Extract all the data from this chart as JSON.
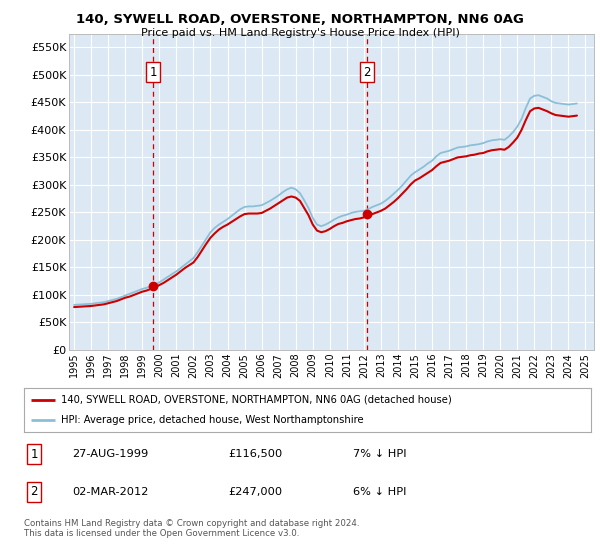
{
  "title": "140, SYWELL ROAD, OVERSTONE, NORTHAMPTON, NN6 0AG",
  "subtitle": "Price paid vs. HM Land Registry's House Price Index (HPI)",
  "background_color": "#ffffff",
  "plot_background": "#dce9f5",
  "grid_color": "#ffffff",
  "ylim": [
    0,
    575000
  ],
  "yticks": [
    0,
    50000,
    100000,
    150000,
    200000,
    250000,
    300000,
    350000,
    400000,
    450000,
    500000,
    550000
  ],
  "ytick_labels": [
    "£0",
    "£50K",
    "£100K",
    "£150K",
    "£200K",
    "£250K",
    "£300K",
    "£350K",
    "£400K",
    "£450K",
    "£500K",
    "£550K"
  ],
  "xlim_start": 1994.7,
  "xlim_end": 2025.5,
  "sale1_date": 1999.65,
  "sale1_price": 116500,
  "sale2_date": 2012.17,
  "sale2_price": 247000,
  "sale_color": "#cc0000",
  "hpi_color": "#8bbfd8",
  "legend_label_red": "140, SYWELL ROAD, OVERSTONE, NORTHAMPTON, NN6 0AG (detached house)",
  "legend_label_blue": "HPI: Average price, detached house, West Northamptonshire",
  "annotation1_label": "1",
  "annotation1_text": "27-AUG-1999",
  "annotation1_price": "£116,500",
  "annotation1_hpi": "7% ↓ HPI",
  "annotation2_label": "2",
  "annotation2_text": "02-MAR-2012",
  "annotation2_price": "£247,000",
  "annotation2_hpi": "6% ↓ HPI",
  "footer": "Contains HM Land Registry data © Crown copyright and database right 2024.\nThis data is licensed under the Open Government Licence v3.0.",
  "hpi_data_years": [
    1995.0,
    1995.25,
    1995.5,
    1995.75,
    1996.0,
    1996.25,
    1996.5,
    1996.75,
    1997.0,
    1997.25,
    1997.5,
    1997.75,
    1998.0,
    1998.25,
    1998.5,
    1998.75,
    1999.0,
    1999.25,
    1999.5,
    1999.75,
    2000.0,
    2000.25,
    2000.5,
    2000.75,
    2001.0,
    2001.25,
    2001.5,
    2001.75,
    2002.0,
    2002.25,
    2002.5,
    2002.75,
    2003.0,
    2003.25,
    2003.5,
    2003.75,
    2004.0,
    2004.25,
    2004.5,
    2004.75,
    2005.0,
    2005.25,
    2005.5,
    2005.75,
    2006.0,
    2006.25,
    2006.5,
    2006.75,
    2007.0,
    2007.25,
    2007.5,
    2007.75,
    2008.0,
    2008.25,
    2008.5,
    2008.75,
    2009.0,
    2009.25,
    2009.5,
    2009.75,
    2010.0,
    2010.25,
    2010.5,
    2010.75,
    2011.0,
    2011.25,
    2011.5,
    2011.75,
    2012.0,
    2012.25,
    2012.5,
    2012.75,
    2013.0,
    2013.25,
    2013.5,
    2013.75,
    2014.0,
    2014.25,
    2014.5,
    2014.75,
    2015.0,
    2015.25,
    2015.5,
    2015.75,
    2016.0,
    2016.25,
    2016.5,
    2016.75,
    2017.0,
    2017.25,
    2017.5,
    2017.75,
    2018.0,
    2018.25,
    2018.5,
    2018.75,
    2019.0,
    2019.25,
    2019.5,
    2019.75,
    2020.0,
    2020.25,
    2020.5,
    2020.75,
    2021.0,
    2021.25,
    2021.5,
    2021.75,
    2022.0,
    2022.25,
    2022.5,
    2022.75,
    2023.0,
    2023.25,
    2023.5,
    2023.75,
    2024.0,
    2024.25,
    2024.5
  ],
  "hpi_data_values": [
    82000,
    82500,
    83000,
    83500,
    84000,
    85000,
    86000,
    87000,
    89000,
    91000,
    93000,
    96000,
    99000,
    102000,
    105000,
    108000,
    111000,
    113000,
    116000,
    119000,
    123000,
    128000,
    133000,
    138000,
    143000,
    149000,
    155000,
    161000,
    167000,
    178000,
    190000,
    202000,
    214000,
    222000,
    228000,
    233000,
    238000,
    244000,
    250000,
    256000,
    260000,
    261000,
    261000,
    262000,
    263000,
    267000,
    271000,
    276000,
    281000,
    287000,
    292000,
    295000,
    292000,
    285000,
    272000,
    258000,
    240000,
    228000,
    225000,
    228000,
    232000,
    237000,
    241000,
    244000,
    246000,
    249000,
    251000,
    252000,
    253000,
    256000,
    260000,
    263000,
    266000,
    271000,
    277000,
    284000,
    291000,
    299000,
    308000,
    317000,
    323000,
    328000,
    333000,
    339000,
    344000,
    352000,
    358000,
    360000,
    362000,
    365000,
    368000,
    369000,
    370000,
    372000,
    373000,
    374000,
    376000,
    379000,
    381000,
    382000,
    383000,
    382000,
    388000,
    396000,
    406000,
    420000,
    440000,
    457000,
    462000,
    463000,
    460000,
    457000,
    452000,
    449000,
    448000,
    447000,
    446000,
    447000,
    448000
  ],
  "pp_data_years": [
    1995.0,
    1995.25,
    1995.5,
    1995.75,
    1996.0,
    1996.25,
    1996.5,
    1996.75,
    1997.0,
    1997.25,
    1997.5,
    1997.75,
    1998.0,
    1998.25,
    1998.5,
    1998.75,
    1999.0,
    1999.25,
    1999.5,
    1999.75,
    2000.0,
    2000.25,
    2000.5,
    2000.75,
    2001.0,
    2001.25,
    2001.5,
    2001.75,
    2002.0,
    2002.25,
    2002.5,
    2002.75,
    2003.0,
    2003.25,
    2003.5,
    2003.75,
    2004.0,
    2004.25,
    2004.5,
    2004.75,
    2005.0,
    2005.25,
    2005.5,
    2005.75,
    2006.0,
    2006.25,
    2006.5,
    2006.75,
    2007.0,
    2007.25,
    2007.5,
    2007.75,
    2008.0,
    2008.25,
    2008.5,
    2008.75,
    2009.0,
    2009.25,
    2009.5,
    2009.75,
    2010.0,
    2010.25,
    2010.5,
    2010.75,
    2011.0,
    2011.25,
    2011.5,
    2011.75,
    2012.0,
    2012.25,
    2012.5,
    2012.75,
    2013.0,
    2013.25,
    2013.5,
    2013.75,
    2014.0,
    2014.25,
    2014.5,
    2014.75,
    2015.0,
    2015.25,
    2015.5,
    2015.75,
    2016.0,
    2016.25,
    2016.5,
    2016.75,
    2017.0,
    2017.25,
    2017.5,
    2017.75,
    2018.0,
    2018.25,
    2018.5,
    2018.75,
    2019.0,
    2019.25,
    2019.5,
    2019.75,
    2020.0,
    2020.25,
    2020.5,
    2020.75,
    2021.0,
    2021.25,
    2021.5,
    2021.75,
    2022.0,
    2022.25,
    2022.5,
    2022.75,
    2023.0,
    2023.25,
    2023.5,
    2023.75,
    2024.0,
    2024.25,
    2024.5
  ],
  "pp_data_values": [
    78000,
    78500,
    79000,
    79500,
    80000,
    81000,
    82000,
    83000,
    85000,
    87000,
    89000,
    92000,
    95000,
    97000,
    100000,
    103000,
    106000,
    108000,
    111000,
    114000,
    118000,
    122000,
    127000,
    132000,
    137000,
    143000,
    149000,
    154000,
    159000,
    169000,
    181000,
    193000,
    204000,
    212000,
    219000,
    224000,
    228000,
    233000,
    238000,
    243000,
    247000,
    248000,
    248000,
    248000,
    249000,
    253000,
    257000,
    262000,
    267000,
    272000,
    277000,
    279000,
    277000,
    271000,
    258000,
    245000,
    228000,
    217000,
    214000,
    216000,
    220000,
    225000,
    229000,
    231000,
    234000,
    236000,
    238000,
    239000,
    241000,
    244000,
    247000,
    250000,
    253000,
    257000,
    263000,
    269000,
    276000,
    284000,
    292000,
    301000,
    308000,
    312000,
    317000,
    322000,
    327000,
    334000,
    340000,
    342000,
    344000,
    347000,
    350000,
    351000,
    352000,
    354000,
    355000,
    357000,
    358000,
    361000,
    363000,
    364000,
    365000,
    364000,
    369000,
    377000,
    386000,
    400000,
    418000,
    434000,
    439000,
    440000,
    437000,
    434000,
    430000,
    427000,
    426000,
    425000,
    424000,
    425000,
    426000
  ]
}
